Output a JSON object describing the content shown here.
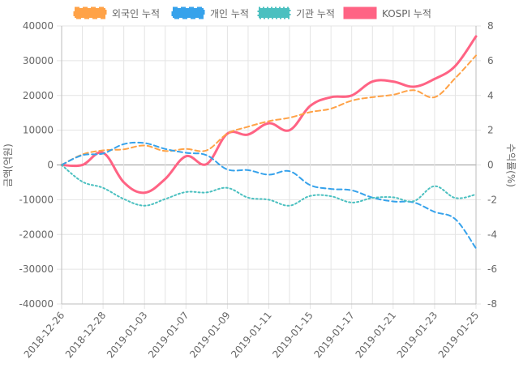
{
  "chart_data": {
    "type": "line",
    "legend_position": "top",
    "grid": true,
    "ylabel_left": "금액(억원)",
    "ylabel_right": "수익률(%)",
    "x": [
      "2018-12-26",
      "2018-12-27",
      "2018-12-28",
      "2019-01-02",
      "2019-01-03",
      "2019-01-04",
      "2019-01-07",
      "2019-01-08",
      "2019-01-09",
      "2019-01-10",
      "2019-01-11",
      "2019-01-14",
      "2019-01-15",
      "2019-01-16",
      "2019-01-17",
      "2019-01-18",
      "2019-01-21",
      "2019-01-22",
      "2019-01-23",
      "2019-01-24",
      "2019-01-25"
    ],
    "x_tick_labels": [
      "2018-12-26",
      "2018-12-28",
      "2019-01-03",
      "2019-01-07",
      "2019-01-09",
      "2019-01-11",
      "2019-01-15",
      "2019-01-17",
      "2019-01-21",
      "2019-01-23",
      "2019-01-25"
    ],
    "y_left": {
      "min": -40000,
      "max": 40000,
      "ticks": [
        40000,
        30000,
        20000,
        10000,
        0,
        -10000,
        -20000,
        -30000,
        -40000
      ]
    },
    "y_right": {
      "min": -8,
      "max": 8,
      "ticks": [
        8,
        6,
        4,
        2,
        0,
        -2,
        -4,
        -6,
        -8
      ]
    },
    "series": [
      {
        "name": "외국인 누적",
        "axis": "left",
        "color": "#ffa247",
        "style": "dashed",
        "values": [
          0,
          3000,
          4200,
          4500,
          5600,
          4000,
          4600,
          4200,
          9000,
          11000,
          12600,
          13600,
          15200,
          16200,
          18500,
          19500,
          20200,
          21500,
          19500,
          25000,
          31500
        ]
      },
      {
        "name": "개인 누적",
        "axis": "left",
        "color": "#36a2eb",
        "style": "dashed",
        "values": [
          0,
          2800,
          3300,
          6000,
          6300,
          4600,
          3500,
          2800,
          -1300,
          -1500,
          -2800,
          -1800,
          -5800,
          -6900,
          -7300,
          -9400,
          -10500,
          -10800,
          -13500,
          -15600,
          -24000
        ]
      },
      {
        "name": "기관 누적",
        "axis": "left",
        "color": "#4bc0c0",
        "style": "dotted",
        "values": [
          0,
          -4800,
          -6600,
          -9800,
          -11700,
          -9800,
          -7800,
          -7900,
          -6600,
          -9400,
          -10000,
          -11700,
          -8900,
          -9000,
          -10800,
          -9500,
          -9300,
          -10400,
          -6100,
          -9500,
          -8500
        ]
      },
      {
        "name": "KOSPI 누적",
        "axis": "right",
        "color": "#ff6384",
        "style": "solid",
        "values": [
          0,
          0,
          0.7,
          -1.0,
          -1.6,
          -0.8,
          0.5,
          0.05,
          1.8,
          1.75,
          2.4,
          2.0,
          3.4,
          3.9,
          4.0,
          4.8,
          4.8,
          4.5,
          4.95,
          5.7,
          7.4
        ]
      }
    ]
  }
}
